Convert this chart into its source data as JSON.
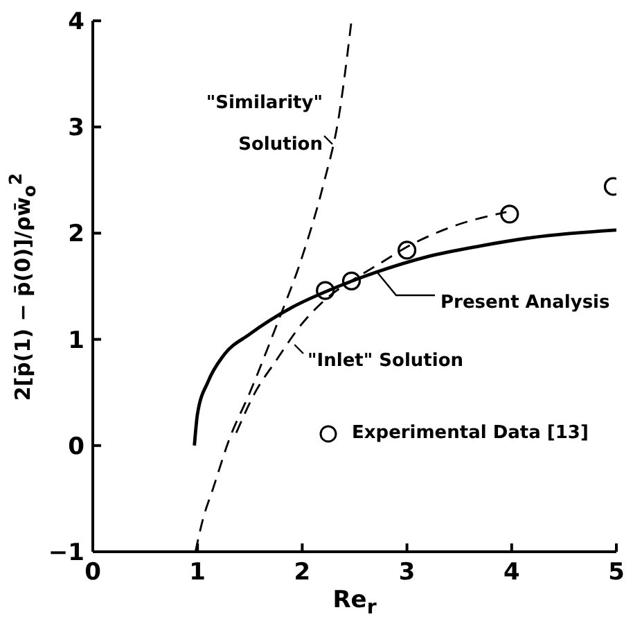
{
  "chart_data": {
    "type": "line",
    "xlabel": "Re$_{r}$",
    "ylabel": "2[p̄(1) − p̄(0)]/ρw̄$_{o}$$^{2}$",
    "xlim": [
      0,
      5
    ],
    "ylim": [
      -1,
      4
    ],
    "xticks": [
      0,
      1,
      2,
      3,
      4,
      5
    ],
    "yticks": [
      -1,
      0,
      1,
      2,
      3,
      4
    ],
    "grid": false,
    "legend": "bottom right",
    "series": [
      {
        "name": "\"Similarity\" Solution",
        "line_style": "dashed",
        "marker": "none",
        "color": "#000000",
        "x": [
          0.98,
          1.05,
          1.15,
          1.3,
          1.5,
          1.75,
          2.0,
          2.2,
          2.35,
          2.47
        ],
        "values": [
          -1,
          -0.7,
          -0.4,
          0.05,
          0.5,
          1.12,
          1.78,
          2.45,
          3.1,
          4.0
        ]
      },
      {
        "name": "Present Analysis",
        "line_style": "solid",
        "marker": "none",
        "color": "#000000",
        "x": [
          0.97,
          1.0,
          1.1,
          1.25,
          1.5,
          1.9,
          2.25,
          2.7,
          3.2,
          3.7,
          4.2,
          5.0
        ],
        "values": [
          0,
          0.3,
          0.6,
          0.85,
          1.05,
          1.3,
          1.46,
          1.63,
          1.78,
          1.88,
          1.96,
          2.03
        ]
      },
      {
        "name": "\"Inlet\" Solution",
        "line_style": "dashed",
        "marker": "none",
        "color": "#000000",
        "x": [
          1.37,
          1.55,
          1.75,
          2.0,
          2.25,
          2.5,
          2.75,
          3.0,
          3.4,
          3.95
        ],
        "values": [
          0.12,
          0.5,
          0.8,
          1.15,
          1.4,
          1.57,
          1.72,
          1.87,
          2.05,
          2.2
        ]
      },
      {
        "name": "Experimental Data [13]",
        "type": "scatter",
        "marker": "circle",
        "color": "#000000",
        "x": [
          2.22,
          2.47,
          3.0,
          3.98,
          4.97
        ],
        "values": [
          1.46,
          1.55,
          1.84,
          2.18,
          2.44
        ]
      }
    ]
  }
}
